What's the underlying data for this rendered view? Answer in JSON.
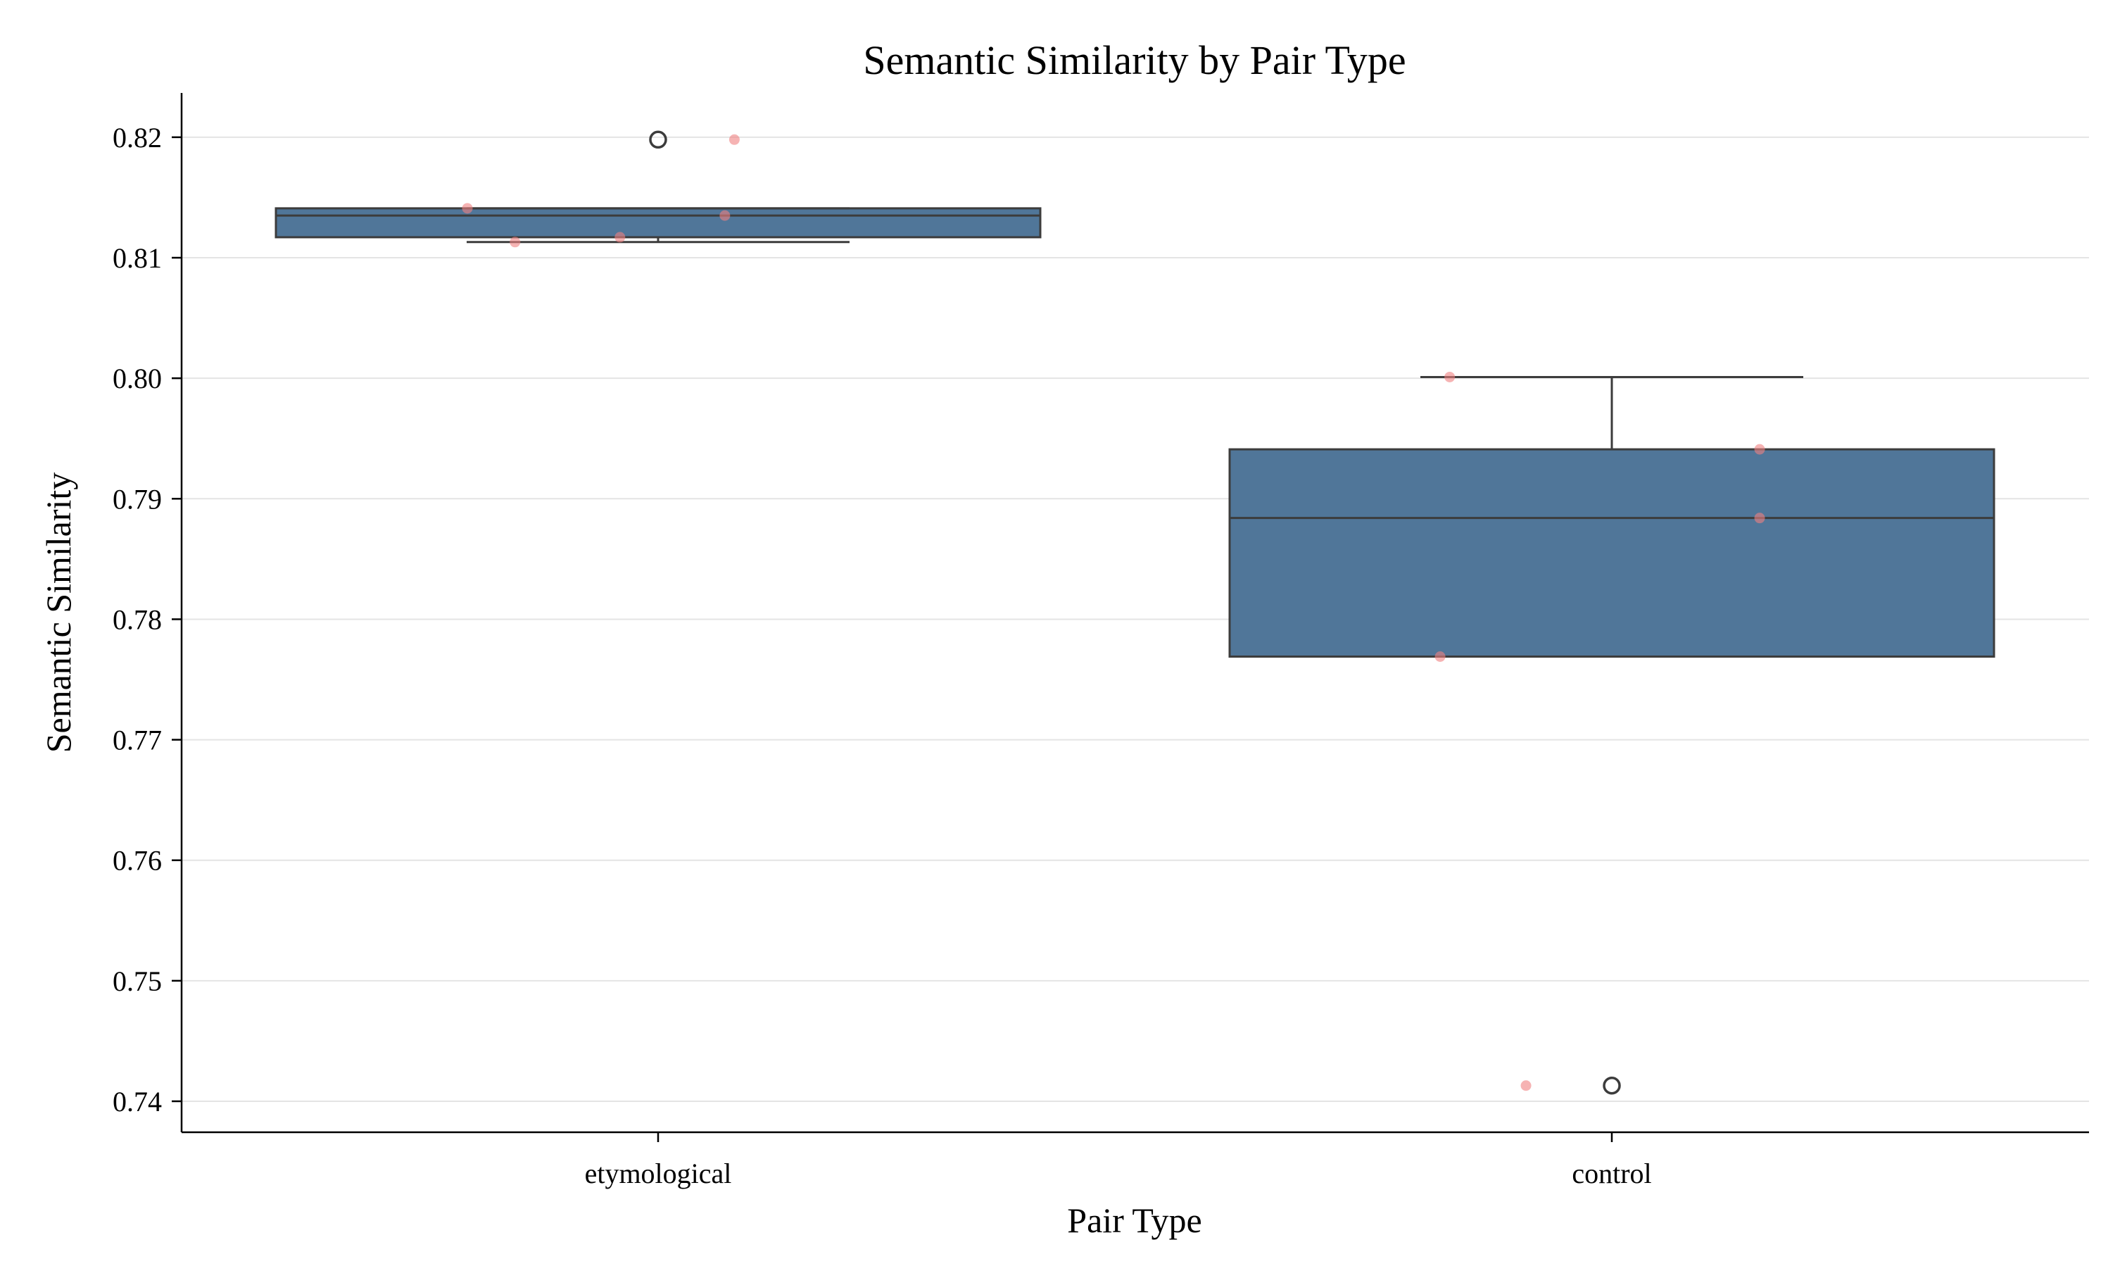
{
  "chart_data": {
    "type": "box",
    "title": "Semantic Similarity by Pair Type",
    "xlabel": "Pair Type",
    "ylabel": "Semantic Similarity",
    "categories": [
      "etymological",
      "control"
    ],
    "ylim": [
      0.7375,
      0.8236
    ],
    "yticks": [
      0.74,
      0.75,
      0.76,
      0.77,
      0.78,
      0.79,
      0.8,
      0.81,
      0.82
    ],
    "ytick_labels": [
      "0.74",
      "0.75",
      "0.76",
      "0.77",
      "0.78",
      "0.79",
      "0.80",
      "0.81",
      "0.82"
    ],
    "grid": "horizontal",
    "box_color": "#507699",
    "point_color": "#f08080",
    "boxes": [
      {
        "category": "etymological",
        "whisker_low": 0.8113,
        "q1": 0.8117,
        "median": 0.8135,
        "q3": 0.8141,
        "whisker_high": 0.8141,
        "outliers": [
          0.8198
        ]
      },
      {
        "category": "control",
        "whisker_low": 0.7769,
        "q1": 0.7769,
        "median": 0.7884,
        "q3": 0.7941,
        "whisker_high": 0.8001,
        "outliers": [
          0.7413
        ]
      }
    ],
    "points": [
      {
        "category": "etymological",
        "offset": -0.2,
        "value": 0.8141
      },
      {
        "category": "etymological",
        "offset": -0.15,
        "value": 0.8113
      },
      {
        "category": "etymological",
        "offset": -0.04,
        "value": 0.8117
      },
      {
        "category": "etymological",
        "offset": 0.07,
        "value": 0.8135
      },
      {
        "category": "etymological",
        "offset": 0.08,
        "value": 0.8198
      },
      {
        "category": "control",
        "offset": -0.18,
        "value": 0.7769
      },
      {
        "category": "control",
        "offset": -0.17,
        "value": 0.8001
      },
      {
        "category": "control",
        "offset": -0.09,
        "value": 0.7413
      },
      {
        "category": "control",
        "offset": 0.155,
        "value": 0.7884
      },
      {
        "category": "control",
        "offset": 0.155,
        "value": 0.7941
      }
    ]
  }
}
